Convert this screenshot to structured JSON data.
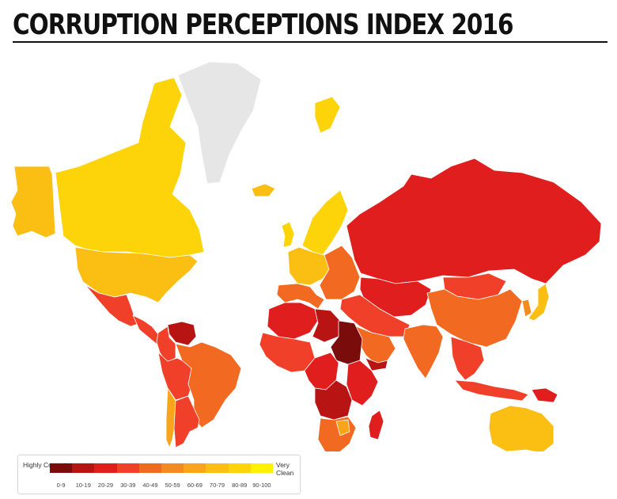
{
  "title": "CORRUPTION PERCEPTIONS INDEX 2016",
  "legend": {
    "low_label": "Highly Corrupt",
    "high_label": "Very Clean",
    "bins": [
      {
        "label": "0-9",
        "color": "#7a0c0c"
      },
      {
        "label": "10-19",
        "color": "#b81414"
      },
      {
        "label": "20-29",
        "color": "#e01e1e"
      },
      {
        "label": "30-39",
        "color": "#f0402a"
      },
      {
        "label": "40-49",
        "color": "#f26a21"
      },
      {
        "label": "50-59",
        "color": "#f58b1f"
      },
      {
        "label": "60-69",
        "color": "#f9a51a"
      },
      {
        "label": "70-79",
        "color": "#fbbf14"
      },
      {
        "label": "80-89",
        "color": "#fdd40a"
      },
      {
        "label": "90-100",
        "color": "#fff200"
      }
    ]
  },
  "map": {
    "no_data_color": "#e6e6e6",
    "border_color": "#ffffff",
    "regions": [
      {
        "id": "canada",
        "band": "80-89"
      },
      {
        "id": "alaska",
        "band": "70-79"
      },
      {
        "id": "usa",
        "band": "70-79"
      },
      {
        "id": "greenland",
        "band": "no-data"
      },
      {
        "id": "mexico",
        "band": "30-39"
      },
      {
        "id": "central-america",
        "band": "30-39"
      },
      {
        "id": "venezuela",
        "band": "10-19"
      },
      {
        "id": "colombia",
        "band": "30-39"
      },
      {
        "id": "peru-bolivia",
        "band": "30-39"
      },
      {
        "id": "brazil",
        "band": "40-49"
      },
      {
        "id": "chile",
        "band": "60-69"
      },
      {
        "id": "argentina",
        "band": "30-39"
      },
      {
        "id": "iceland",
        "band": "70-79"
      },
      {
        "id": "uk",
        "band": "80-89"
      },
      {
        "id": "scandinavia",
        "band": "80-89"
      },
      {
        "id": "western-europe",
        "band": "70-79"
      },
      {
        "id": "southern-europe",
        "band": "40-49"
      },
      {
        "id": "eastern-europe",
        "band": "40-49"
      },
      {
        "id": "russia",
        "band": "20-29"
      },
      {
        "id": "svalbard",
        "band": "80-89"
      },
      {
        "id": "kazakhstan-central-asia",
        "band": "20-29"
      },
      {
        "id": "middle-east",
        "band": "30-39"
      },
      {
        "id": "arabian-peninsula",
        "band": "40-49"
      },
      {
        "id": "yemen",
        "band": "10-19"
      },
      {
        "id": "north-africa",
        "band": "20-29"
      },
      {
        "id": "libya",
        "band": "10-19"
      },
      {
        "id": "sudan",
        "band": "0-9"
      },
      {
        "id": "west-africa",
        "band": "30-39"
      },
      {
        "id": "central-africa",
        "band": "20-29"
      },
      {
        "id": "east-africa",
        "band": "20-29"
      },
      {
        "id": "angola-drc",
        "band": "10-19"
      },
      {
        "id": "southern-africa",
        "band": "40-49"
      },
      {
        "id": "botswana",
        "band": "60-69"
      },
      {
        "id": "madagascar",
        "band": "20-29"
      },
      {
        "id": "india",
        "band": "40-49"
      },
      {
        "id": "china",
        "band": "40-49"
      },
      {
        "id": "mongolia",
        "band": "30-39"
      },
      {
        "id": "southeast-asia",
        "band": "30-39"
      },
      {
        "id": "indonesia",
        "band": "30-39"
      },
      {
        "id": "papua",
        "band": "20-29"
      },
      {
        "id": "japan",
        "band": "70-79"
      },
      {
        "id": "korea",
        "band": "50-59"
      },
      {
        "id": "australia",
        "band": "70-79"
      },
      {
        "id": "new-zealand",
        "band": "90-100"
      }
    ]
  }
}
